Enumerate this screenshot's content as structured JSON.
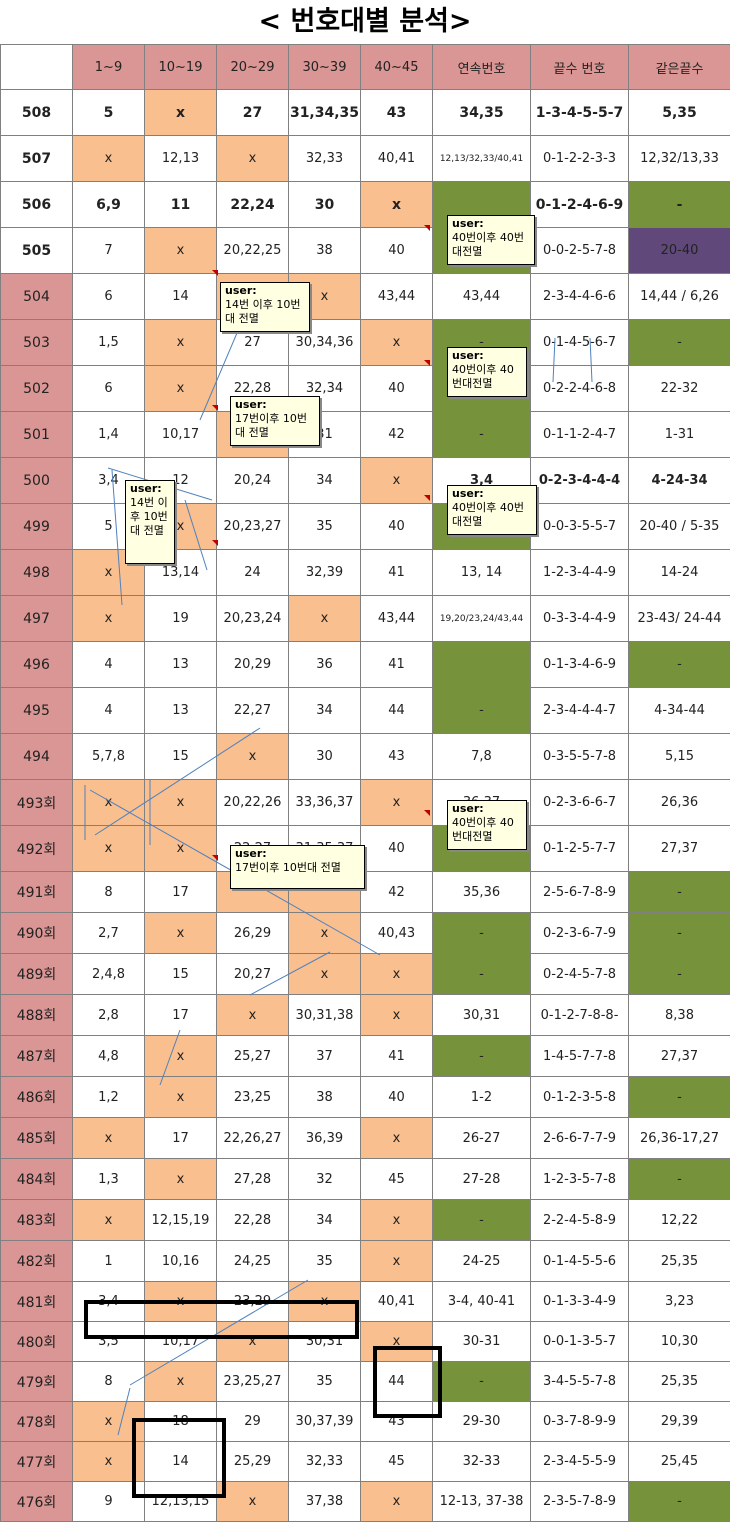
{
  "title": "< 번호대별 분석>",
  "headers": [
    "",
    "1~9",
    "10~19",
    "20~29",
    "30~39",
    "40~45",
    "연속번호",
    "끝수 번호",
    "같은끝수"
  ],
  "rows": [
    {
      "round": "508",
      "c1": "5",
      "c2": "x",
      "c3": "27",
      "c4": "31,34,35",
      "c5": "43",
      "c6": "34,35",
      "c7": "1-3-4-5-5-7",
      "c8": "5,35"
    },
    {
      "round": "507",
      "c1": "x",
      "c2": "12,13",
      "c3": "x",
      "c4": "32,33",
      "c5": "40,41",
      "c6": "12,13/32,33/40,41",
      "c7": "0-1-2-2-3-3",
      "c8": "12,32/13,33"
    },
    {
      "round": "506",
      "c1": "6,9",
      "c2": "11",
      "c3": "22,24",
      "c4": "30",
      "c5": "x",
      "c6": "",
      "c7": "0-1-2-4-6-9",
      "c8": "-"
    },
    {
      "round": "505",
      "c1": "7",
      "c2": "x",
      "c3": "20,22,25",
      "c4": "38",
      "c5": "40",
      "c6": "",
      "c7": "0-0-2-5-7-8",
      "c8": "20-40"
    },
    {
      "round": "504",
      "c1": "6",
      "c2": "14",
      "c3": "",
      "c4": "x",
      "c5": "43,44",
      "c6": "43,44",
      "c7": "2-3-4-4-6-6",
      "c8": "14,44 / 6,26"
    },
    {
      "round": "503",
      "c1": "1,5",
      "c2": "x",
      "c3": "27",
      "c4": "30,34,36",
      "c5": "x",
      "c6": "-",
      "c7": "0-1-4-5-6-7",
      "c8": "-"
    },
    {
      "round": "502",
      "c1": "6",
      "c2": "x",
      "c3": "22,28",
      "c4": "32,34",
      "c5": "40",
      "c6": "",
      "c7": "0-2-2-4-6-8",
      "c8": "22-32"
    },
    {
      "round": "501",
      "c1": "1,4",
      "c2": "10,17",
      "c3": "",
      "c4": "31",
      "c5": "42",
      "c6": "-",
      "c7": "0-1-1-2-4-7",
      "c8": "1-31"
    },
    {
      "round": "500",
      "c1": "3,4",
      "c2": "12",
      "c3": "20,24",
      "c4": "34",
      "c5": "x",
      "c6": "3,4",
      "c7": "0-2-3-4-4-4",
      "c8": "4-24-34"
    },
    {
      "round": "499",
      "c1": "5",
      "c2": "x",
      "c3": "20,23,27",
      "c4": "35",
      "c5": "40",
      "c6": "",
      "c7": "0-0-3-5-5-7",
      "c8": "20-40 / 5-35"
    },
    {
      "round": "498",
      "c1": "x",
      "c2": "13,14",
      "c3": "24",
      "c4": "32,39",
      "c5": "41",
      "c6": "13, 14",
      "c7": "1-2-3-4-4-9",
      "c8": "14-24"
    },
    {
      "round": "497",
      "c1": "x",
      "c2": "19",
      "c3": "20,23,24",
      "c4": "x",
      "c5": "43,44",
      "c6": "19,20/23,24/43,44",
      "c7": "0-3-3-4-4-9",
      "c8": "23-43/ 24-44"
    },
    {
      "round": "496",
      "c1": "4",
      "c2": "13",
      "c3": "20,29",
      "c4": "36",
      "c5": "41",
      "c6": "",
      "c7": "0-1-3-4-6-9",
      "c8": "-"
    },
    {
      "round": "495",
      "c1": "4",
      "c2": "13",
      "c3": "22,27",
      "c4": "34",
      "c5": "44",
      "c6": "-",
      "c7": "2-3-4-4-4-7",
      "c8": "4-34-44"
    },
    {
      "round": "494",
      "c1": "5,7,8",
      "c2": "15",
      "c3": "x",
      "c4": "30",
      "c5": "43",
      "c6": "7,8",
      "c7": "0-3-5-5-7-8",
      "c8": "5,15"
    },
    {
      "round": "493회",
      "c1": "x",
      "c2": "x",
      "c3": "20,22,26",
      "c4": "33,36,37",
      "c5": "x",
      "c6": "36,37",
      "c7": "0-2-3-6-6-7",
      "c8": "26,36"
    },
    {
      "round": "492회",
      "c1": "x",
      "c2": "x",
      "c3": "22,27",
      "c4": "31,35,37",
      "c5": "40",
      "c6": "",
      "c7": "0-1-2-5-7-7",
      "c8": "27,37"
    },
    {
      "round": "491회",
      "c1": "8",
      "c2": "17",
      "c3": "",
      "c4": "",
      "c5": "42",
      "c6": "35,36",
      "c7": "2-5-6-7-8-9",
      "c8": "-"
    },
    {
      "round": "490회",
      "c1": "2,7",
      "c2": "x",
      "c3": "26,29",
      "c4": "x",
      "c5": "40,43",
      "c6": "-",
      "c7": "0-2-3-6-7-9",
      "c8": "-"
    },
    {
      "round": "489회",
      "c1": "2,4,8",
      "c2": "15",
      "c3": "20,27",
      "c4": "x",
      "c5": "x",
      "c6": "-",
      "c7": "0-2-4-5-7-8",
      "c8": "-"
    },
    {
      "round": "488회",
      "c1": "2,8",
      "c2": "17",
      "c3": "x",
      "c4": "30,31,38",
      "c5": "x",
      "c6": "30,31",
      "c7": "0-1-2-7-8-8-",
      "c8": "8,38"
    },
    {
      "round": "487회",
      "c1": "4,8",
      "c2": "x",
      "c3": "25,27",
      "c4": "37",
      "c5": "41",
      "c6": "-",
      "c7": "1-4-5-7-7-8",
      "c8": "27,37"
    },
    {
      "round": "486회",
      "c1": "1,2",
      "c2": "x",
      "c3": "23,25",
      "c4": "38",
      "c5": "40",
      "c6": "1-2",
      "c7": "0-1-2-3-5-8",
      "c8": "-"
    },
    {
      "round": "485회",
      "c1": "x",
      "c2": "17",
      "c3": "22,26,27",
      "c4": "36,39",
      "c5": "x",
      "c6": "26-27",
      "c7": "2-6-6-7-7-9",
      "c8": "26,36-17,27"
    },
    {
      "round": "484회",
      "c1": "1,3",
      "c2": "x",
      "c3": "27,28",
      "c4": "32",
      "c5": "45",
      "c6": "27-28",
      "c7": "1-2-3-5-7-8",
      "c8": "-"
    },
    {
      "round": "483회",
      "c1": "x",
      "c2": "12,15,19",
      "c3": "22,28",
      "c4": "34",
      "c5": "x",
      "c6": "-",
      "c7": "2-2-4-5-8-9",
      "c8": "12,22"
    },
    {
      "round": "482회",
      "c1": "1",
      "c2": "10,16",
      "c3": "24,25",
      "c4": "35",
      "c5": "x",
      "c6": "24-25",
      "c7": "0-1-4-5-5-6",
      "c8": "25,35"
    },
    {
      "round": "481회",
      "c1": "3,4",
      "c2": "x",
      "c3": "23,29",
      "c4": "x",
      "c5": "40,41",
      "c6": "3-4, 40-41",
      "c7": "0-1-3-3-4-9",
      "c8": "3,23"
    },
    {
      "round": "480회",
      "c1": "3,5",
      "c2": "10,17",
      "c3": "x",
      "c4": "30,31",
      "c5": "x",
      "c6": "30-31",
      "c7": "0-0-1-3-5-7",
      "c8": "10,30"
    },
    {
      "round": "479회",
      "c1": "8",
      "c2": "x",
      "c3": "23,25,27",
      "c4": "35",
      "c5": "44",
      "c6": "-",
      "c7": "3-4-5-5-7-8",
      "c8": "25,35"
    },
    {
      "round": "478회",
      "c1": "x",
      "c2": "18",
      "c3": "29",
      "c4": "30,37,39",
      "c5": "43",
      "c6": "29-30",
      "c7": "0-3-7-8-9-9",
      "c8": "29,39"
    },
    {
      "round": "477회",
      "c1": "x",
      "c2": "14",
      "c3": "25,29",
      "c4": "32,33",
      "c5": "45",
      "c6": "32-33",
      "c7": "2-3-4-5-5-9",
      "c8": "25,45"
    },
    {
      "round": "476회",
      "c1": "9",
      "c2": "12,13,15",
      "c3": "x",
      "c4": "37,38",
      "c5": "x",
      "c6": "12-13, 37-38",
      "c7": "2-3-5-7-8-9",
      "c8": "-"
    }
  ],
  "notes": [
    {
      "author": "user:",
      "text": "40번이후 40번대전멸"
    },
    {
      "author": "user:",
      "text": "14번 이후  10번대 전멸"
    },
    {
      "author": "user:",
      "text": "40번이후 40번대전멸"
    },
    {
      "author": "user:",
      "text": "17번이후  10번대 전멸"
    },
    {
      "author": "user:",
      "text": "14번 이후 10번 대 전멸"
    },
    {
      "author": "user:",
      "text": "40번이후 40번대전멸"
    },
    {
      "author": "user:",
      "text": "40번이후 40번대전멸"
    },
    {
      "author": "user:",
      "text": "17번이후  10번대 전멸"
    }
  ],
  "colors": {
    "header_bg": "#da9694",
    "round_bg": "#da9694",
    "empty_range_bg": "#fabf8f",
    "green_bg": "#76933c",
    "purple_bg": "#60497a",
    "annotation_line": "#4f81bd",
    "note_bg": "#ffffe1"
  }
}
